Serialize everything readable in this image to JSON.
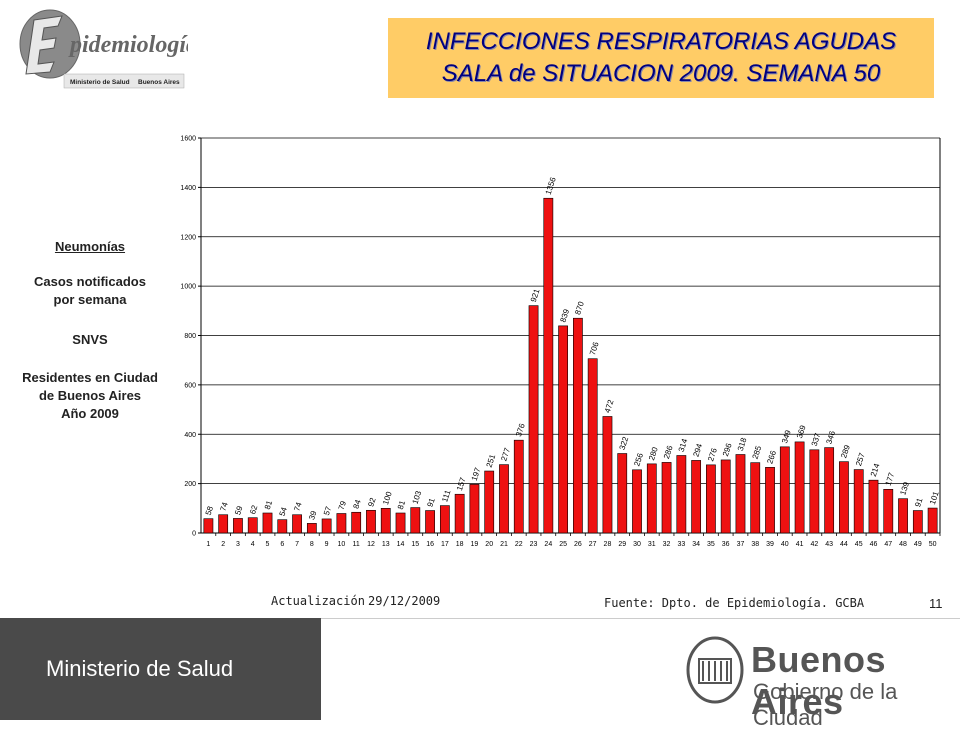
{
  "header": {
    "logo_text": "Epidemiología",
    "logo_sub_ministerio": "Ministerio de Salud",
    "logo_sub_ba": "Buenos Aires",
    "title_line1": "INFECCIONES RESPIRATORIAS AGUDAS",
    "title_line2": "SALA de SITUACION 2009. SEMANA 50",
    "colors": {
      "title_bg": "#ffcc66",
      "title_text": "#000080"
    }
  },
  "side": {
    "heading": "Neumonías",
    "line1": "Casos notificados",
    "line2": "por semana",
    "line3": "SNVS",
    "line4": "Residentes en Ciudad",
    "line5": "de Buenos Aires",
    "line6": "Año 2009"
  },
  "chart_data": {
    "type": "bar",
    "categories": [
      "1",
      "2",
      "3",
      "4",
      "5",
      "6",
      "7",
      "8",
      "9",
      "10",
      "11",
      "12",
      "13",
      "14",
      "15",
      "16",
      "17",
      "18",
      "19",
      "20",
      "21",
      "22",
      "23",
      "24",
      "25",
      "26",
      "27",
      "28",
      "29",
      "30",
      "31",
      "32",
      "33",
      "34",
      "35",
      "36",
      "37",
      "38",
      "39",
      "40",
      "41",
      "42",
      "43",
      "44",
      "45",
      "46",
      "47",
      "48",
      "49",
      "50"
    ],
    "values": [
      58,
      74,
      59,
      62,
      81,
      54,
      74,
      39,
      57,
      79,
      84,
      92,
      100,
      81,
      103,
      91,
      111,
      157,
      197,
      251,
      277,
      376,
      921,
      1356,
      839,
      870,
      706,
      472,
      322,
      256,
      280,
      286,
      314,
      294,
      276,
      296,
      318,
      285,
      266,
      349,
      369,
      337,
      346,
      289,
      257,
      214,
      177,
      139,
      91,
      101
    ],
    "ylim": [
      0,
      1600
    ],
    "yticks": [
      0,
      200,
      400,
      600,
      800,
      1000,
      1200,
      1400,
      1600
    ],
    "grid": true,
    "bar_color": "#ee1111",
    "title": "",
    "xlabel": "",
    "ylabel": ""
  },
  "footer": {
    "update_label": "Actualización",
    "update_date": "29/12/2009",
    "source": "Fuente: Dpto. de Epidemiología. GCBA",
    "page_number": "11"
  },
  "bottom": {
    "ministerio": "Ministerio de Salud",
    "ba_title": "Buenos Aires",
    "ba_subtitle": "Gobierno de la Ciudad"
  }
}
